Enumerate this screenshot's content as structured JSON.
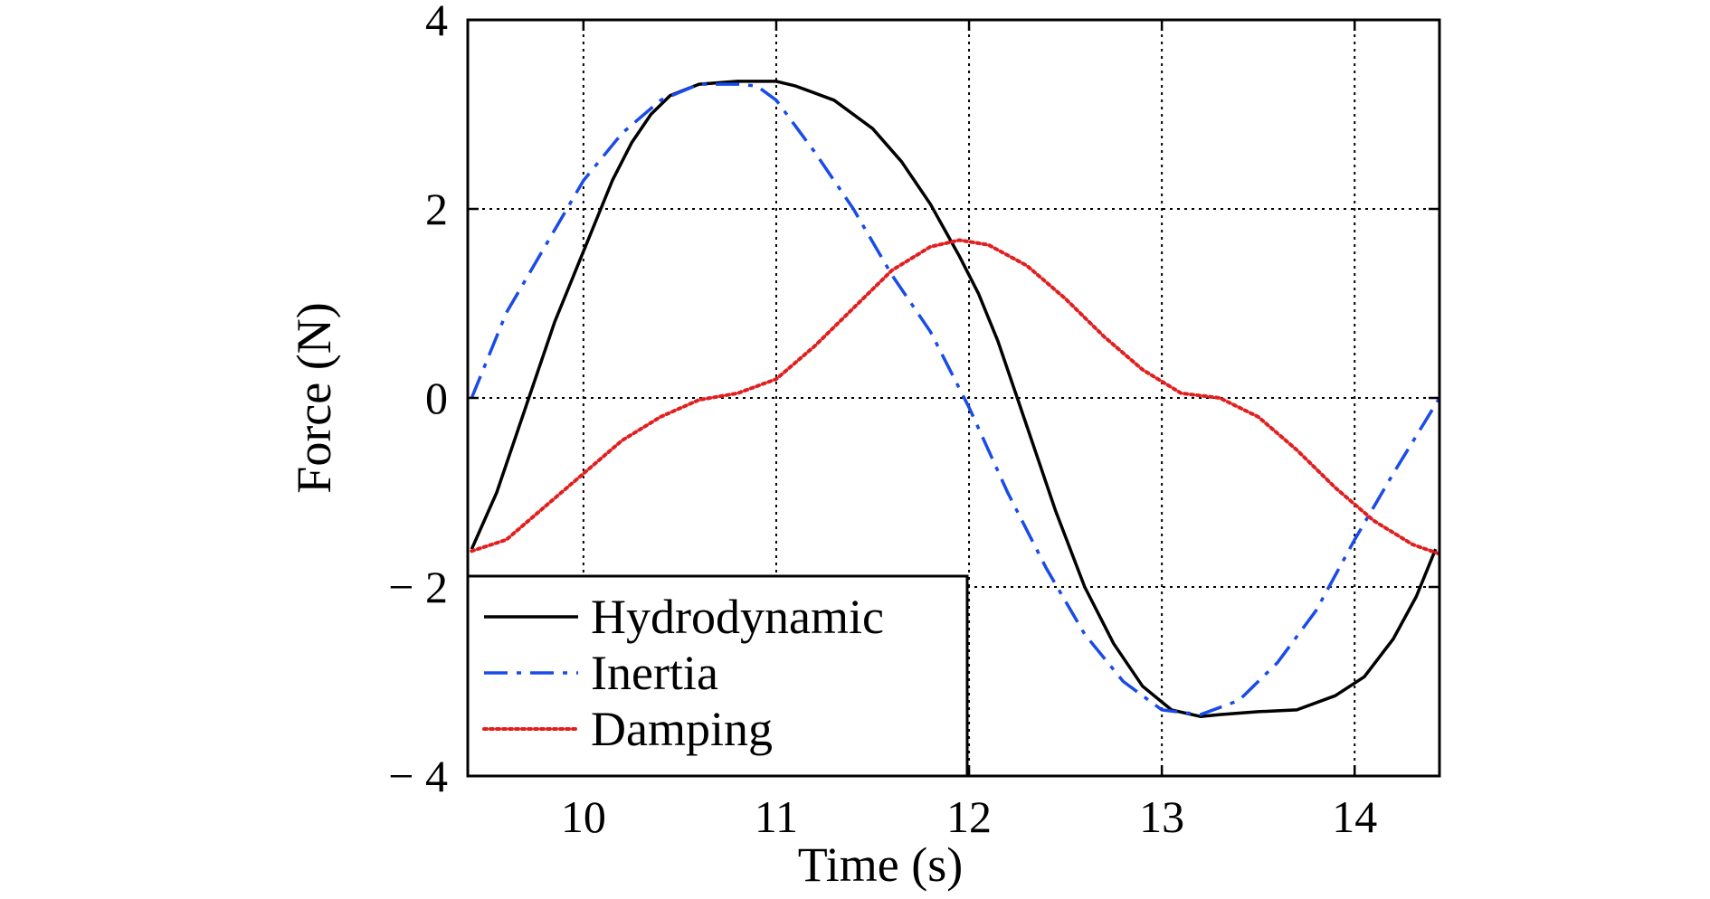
{
  "chart_data": {
    "type": "line",
    "title": "",
    "xlabel": "Time (s)",
    "ylabel": "Force (N)",
    "xlim": [
      9.4,
      14.44
    ],
    "ylim": [
      -4,
      4
    ],
    "grid": true,
    "grid_style": "dotted",
    "legend_position": "lower-left",
    "x_ticks": [
      10,
      11,
      12,
      13,
      14
    ],
    "x_tick_labels": [
      "10",
      "11",
      "12",
      "13",
      "14"
    ],
    "y_ticks": [
      4,
      2,
      0,
      -2,
      -4
    ],
    "y_tick_labels": [
      "4",
      "2",
      "0",
      "− 2",
      "− 4"
    ],
    "series": [
      {
        "name": "Hydrodynamic",
        "color": "#000000",
        "style": "solid",
        "x": [
          9.42,
          9.55,
          9.65,
          9.75,
          9.85,
          9.95,
          10.05,
          10.15,
          10.25,
          10.35,
          10.45,
          10.6,
          10.8,
          11.0,
          11.1,
          11.3,
          11.5,
          11.65,
          11.8,
          11.95,
          12.05,
          12.15,
          12.3,
          12.45,
          12.6,
          12.75,
          12.9,
          13.05,
          13.2,
          13.3,
          13.5,
          13.7,
          13.9,
          14.05,
          14.2,
          14.32,
          14.42
        ],
        "y": [
          -1.6,
          -1.0,
          -0.4,
          0.2,
          0.8,
          1.3,
          1.8,
          2.3,
          2.7,
          3.0,
          3.2,
          3.32,
          3.35,
          3.35,
          3.3,
          3.15,
          2.85,
          2.5,
          2.05,
          1.5,
          1.1,
          0.6,
          -0.3,
          -1.2,
          -2.0,
          -2.6,
          -3.05,
          -3.3,
          -3.37,
          -3.35,
          -3.32,
          -3.3,
          -3.15,
          -2.95,
          -2.55,
          -2.1,
          -1.6
        ]
      },
      {
        "name": "Inertia",
        "color": "#1a4be8",
        "style": "dashdot",
        "x": [
          9.42,
          9.6,
          9.8,
          10.0,
          10.2,
          10.4,
          10.6,
          10.8,
          10.9,
          11.0,
          11.2,
          11.4,
          11.6,
          11.8,
          12.0,
          12.2,
          12.4,
          12.6,
          12.8,
          13.0,
          13.2,
          13.4,
          13.6,
          13.8,
          14.0,
          14.2,
          14.44
        ],
        "y": [
          0.0,
          0.9,
          1.6,
          2.3,
          2.8,
          3.15,
          3.32,
          3.32,
          3.3,
          3.15,
          2.6,
          2.0,
          1.3,
          0.7,
          -0.1,
          -1.0,
          -1.8,
          -2.5,
          -3.0,
          -3.3,
          -3.35,
          -3.2,
          -2.8,
          -2.25,
          -1.5,
          -0.8,
          0.0
        ]
      },
      {
        "name": "Damping",
        "color": "#e02020",
        "style": "dotted",
        "x": [
          9.42,
          9.6,
          9.8,
          10.0,
          10.2,
          10.4,
          10.6,
          10.8,
          11.0,
          11.2,
          11.4,
          11.6,
          11.8,
          11.95,
          12.1,
          12.3,
          12.5,
          12.7,
          12.9,
          13.1,
          13.3,
          13.5,
          13.7,
          13.9,
          14.1,
          14.3,
          14.44
        ],
        "y": [
          -1.62,
          -1.5,
          -1.15,
          -0.8,
          -0.45,
          -0.2,
          -0.02,
          0.05,
          0.2,
          0.55,
          0.95,
          1.35,
          1.6,
          1.67,
          1.62,
          1.4,
          1.05,
          0.65,
          0.3,
          0.05,
          0.0,
          -0.2,
          -0.55,
          -0.95,
          -1.3,
          -1.55,
          -1.65
        ]
      }
    ]
  }
}
